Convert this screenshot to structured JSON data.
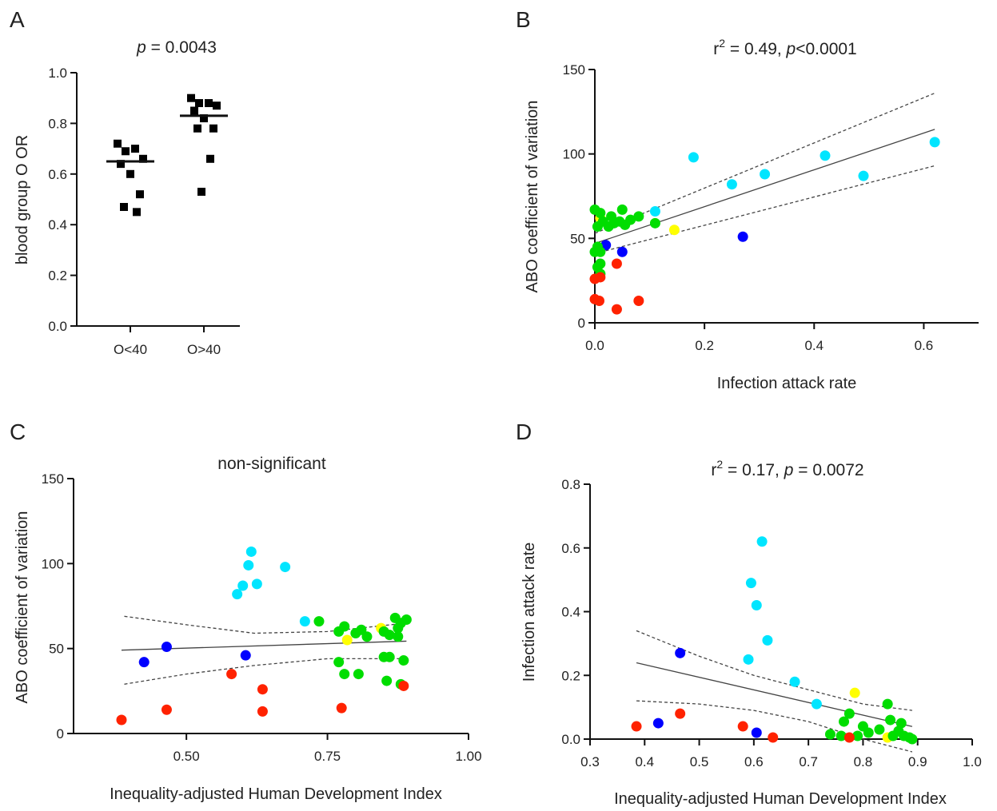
{
  "chart_data": [
    {
      "id": "A",
      "panel": "A",
      "type": "scatter",
      "title": "p = 0.0043",
      "title_parts": {
        "p": "p",
        "rest": " = 0.0043"
      },
      "xlabel": "",
      "ylabel": "blood group O OR",
      "categories": [
        "O<40",
        "O>40"
      ],
      "ylim": [
        0,
        1.0
      ],
      "yticks": [
        "0.0",
        "0.2",
        "0.4",
        "0.6",
        "0.8",
        "1.0"
      ],
      "series": [
        {
          "name": "O<40",
          "values": [
            0.72,
            0.69,
            0.7,
            0.66,
            0.64,
            0.6,
            0.52,
            0.47,
            0.45
          ],
          "median": 0.65
        },
        {
          "name": "O>40",
          "values": [
            0.9,
            0.88,
            0.88,
            0.87,
            0.85,
            0.82,
            0.78,
            0.78,
            0.66,
            0.53
          ],
          "median": 0.83
        }
      ],
      "marker": "square",
      "color": "#000000"
    },
    {
      "id": "B",
      "panel": "B",
      "type": "scatter",
      "title_parts": {
        "r": "r",
        "sup": "2",
        "mid": " = 0.49, ",
        "p": "p",
        "rest": "<0.0001"
      },
      "xlabel": "Infection attack rate",
      "ylabel": "ABO coefficient of variation",
      "xlim": [
        0,
        0.7
      ],
      "ylim": [
        0,
        150
      ],
      "xticks": [
        "0.0",
        "0.2",
        "0.4",
        "0.6"
      ],
      "yticks": [
        "0",
        "50",
        "100",
        "150"
      ],
      "fit": {
        "slope": 109,
        "intercept": 47
      },
      "ci_upper": [
        [
          0,
          53
        ],
        [
          0.62,
          136
        ]
      ],
      "ci_lower": [
        [
          0,
          41
        ],
        [
          0.62,
          93
        ]
      ],
      "points": [
        {
          "x": 0.62,
          "y": 107,
          "color": "#00e5ff"
        },
        {
          "x": 0.49,
          "y": 87,
          "color": "#00e5ff"
        },
        {
          "x": 0.42,
          "y": 99,
          "color": "#00e5ff"
        },
        {
          "x": 0.31,
          "y": 88,
          "color": "#00e5ff"
        },
        {
          "x": 0.25,
          "y": 82,
          "color": "#00e5ff"
        },
        {
          "x": 0.18,
          "y": 98,
          "color": "#00e5ff"
        },
        {
          "x": 0.11,
          "y": 66,
          "color": "#00e5ff"
        },
        {
          "x": 0.145,
          "y": 55,
          "color": "#ffff00"
        },
        {
          "x": 0.01,
          "y": 62,
          "color": "#ffff00"
        },
        {
          "x": 0.27,
          "y": 51,
          "color": "#0000ff"
        },
        {
          "x": 0.05,
          "y": 42,
          "color": "#0000ff"
        },
        {
          "x": 0.02,
          "y": 46,
          "color": "#0000ff"
        },
        {
          "x": 0.0,
          "y": 67,
          "color": "#00dd00"
        },
        {
          "x": 0.01,
          "y": 65,
          "color": "#00dd00"
        },
        {
          "x": 0.015,
          "y": 60,
          "color": "#00dd00"
        },
        {
          "x": 0.005,
          "y": 57,
          "color": "#00dd00"
        },
        {
          "x": 0.025,
          "y": 57,
          "color": "#00dd00"
        },
        {
          "x": 0.03,
          "y": 63,
          "color": "#00dd00"
        },
        {
          "x": 0.035,
          "y": 59,
          "color": "#00dd00"
        },
        {
          "x": 0.045,
          "y": 60,
          "color": "#00dd00"
        },
        {
          "x": 0.05,
          "y": 67,
          "color": "#00dd00"
        },
        {
          "x": 0.055,
          "y": 58,
          "color": "#00dd00"
        },
        {
          "x": 0.065,
          "y": 61,
          "color": "#00dd00"
        },
        {
          "x": 0.08,
          "y": 63,
          "color": "#00dd00"
        },
        {
          "x": 0.11,
          "y": 59,
          "color": "#00dd00"
        },
        {
          "x": 0.005,
          "y": 45,
          "color": "#00dd00"
        },
        {
          "x": 0.01,
          "y": 42,
          "color": "#00dd00"
        },
        {
          "x": 0.0,
          "y": 42,
          "color": "#00dd00"
        },
        {
          "x": 0.01,
          "y": 35,
          "color": "#00dd00"
        },
        {
          "x": 0.005,
          "y": 33,
          "color": "#00dd00"
        },
        {
          "x": 0.01,
          "y": 29,
          "color": "#00dd00"
        },
        {
          "x": 0.04,
          "y": 35,
          "color": "#ff2200"
        },
        {
          "x": 0.0,
          "y": 26,
          "color": "#ff2200"
        },
        {
          "x": 0.01,
          "y": 27,
          "color": "#ff2200"
        },
        {
          "x": 0.0,
          "y": 14,
          "color": "#ff2200"
        },
        {
          "x": 0.008,
          "y": 13,
          "color": "#ff2200"
        },
        {
          "x": 0.04,
          "y": 8,
          "color": "#ff2200"
        },
        {
          "x": 0.08,
          "y": 13,
          "color": "#ff2200"
        }
      ]
    },
    {
      "id": "C",
      "panel": "C",
      "type": "scatter",
      "title": "non-significant",
      "xlabel": "Inequality-adjusted Human Development Index",
      "ylabel": "ABO coefficient of variation",
      "xlim": [
        0.3,
        1.0
      ],
      "ylim": [
        0,
        150
      ],
      "xticks": [
        "0.50",
        "0.75",
        "1.00"
      ],
      "xtick_values": [
        0.5,
        0.75,
        1.0
      ],
      "yticks": [
        "0",
        "50",
        "100",
        "150"
      ],
      "fit": {
        "slope": 10.5,
        "intercept": 45
      },
      "ci_upper": [
        [
          0.39,
          69
        ],
        [
          0.5,
          64
        ],
        [
          0.62,
          59
        ],
        [
          0.75,
          60
        ],
        [
          0.89,
          65
        ]
      ],
      "ci_lower": [
        [
          0.39,
          29
        ],
        [
          0.5,
          35
        ],
        [
          0.62,
          40
        ],
        [
          0.75,
          44
        ],
        [
          0.89,
          44
        ]
      ],
      "points": [
        {
          "x": 0.615,
          "y": 107,
          "color": "#00e5ff"
        },
        {
          "x": 0.61,
          "y": 99,
          "color": "#00e5ff"
        },
        {
          "x": 0.675,
          "y": 98,
          "color": "#00e5ff"
        },
        {
          "x": 0.6,
          "y": 87,
          "color": "#00e5ff"
        },
        {
          "x": 0.625,
          "y": 88,
          "color": "#00e5ff"
        },
        {
          "x": 0.59,
          "y": 82,
          "color": "#00e5ff"
        },
        {
          "x": 0.71,
          "y": 66,
          "color": "#00e5ff"
        },
        {
          "x": 0.785,
          "y": 55,
          "color": "#ffff00"
        },
        {
          "x": 0.845,
          "y": 62,
          "color": "#ffff00"
        },
        {
          "x": 0.465,
          "y": 51,
          "color": "#0000ff"
        },
        {
          "x": 0.425,
          "y": 42,
          "color": "#0000ff"
        },
        {
          "x": 0.605,
          "y": 46,
          "color": "#0000ff"
        },
        {
          "x": 0.735,
          "y": 66,
          "color": "#00dd00"
        },
        {
          "x": 0.77,
          "y": 60,
          "color": "#00dd00"
        },
        {
          "x": 0.78,
          "y": 63,
          "color": "#00dd00"
        },
        {
          "x": 0.8,
          "y": 59,
          "color": "#00dd00"
        },
        {
          "x": 0.81,
          "y": 61,
          "color": "#00dd00"
        },
        {
          "x": 0.82,
          "y": 57,
          "color": "#00dd00"
        },
        {
          "x": 0.85,
          "y": 60,
          "color": "#00dd00"
        },
        {
          "x": 0.86,
          "y": 58,
          "color": "#00dd00"
        },
        {
          "x": 0.87,
          "y": 68,
          "color": "#00dd00"
        },
        {
          "x": 0.875,
          "y": 62,
          "color": "#00dd00"
        },
        {
          "x": 0.88,
          "y": 65,
          "color": "#00dd00"
        },
        {
          "x": 0.89,
          "y": 67,
          "color": "#00dd00"
        },
        {
          "x": 0.875,
          "y": 57,
          "color": "#00dd00"
        },
        {
          "x": 0.77,
          "y": 42,
          "color": "#00dd00"
        },
        {
          "x": 0.78,
          "y": 35,
          "color": "#00dd00"
        },
        {
          "x": 0.805,
          "y": 35,
          "color": "#00dd00"
        },
        {
          "x": 0.85,
          "y": 45,
          "color": "#00dd00"
        },
        {
          "x": 0.86,
          "y": 45,
          "color": "#00dd00"
        },
        {
          "x": 0.855,
          "y": 31,
          "color": "#00dd00"
        },
        {
          "x": 0.88,
          "y": 29,
          "color": "#00dd00"
        },
        {
          "x": 0.885,
          "y": 43,
          "color": "#00dd00"
        },
        {
          "x": 0.385,
          "y": 8,
          "color": "#ff2200"
        },
        {
          "x": 0.465,
          "y": 14,
          "color": "#ff2200"
        },
        {
          "x": 0.58,
          "y": 35,
          "color": "#ff2200"
        },
        {
          "x": 0.635,
          "y": 26,
          "color": "#ff2200"
        },
        {
          "x": 0.635,
          "y": 13,
          "color": "#ff2200"
        },
        {
          "x": 0.775,
          "y": 15,
          "color": "#ff2200"
        },
        {
          "x": 0.885,
          "y": 28,
          "color": "#ff2200"
        }
      ]
    },
    {
      "id": "D",
      "panel": "D",
      "type": "scatter",
      "title_parts": {
        "r": "r",
        "sup": "2",
        "mid": " = 0.17, ",
        "p": "p",
        "rest": " = 0.0072"
      },
      "xlabel": "Inequality-adjusted Human Development Index",
      "ylabel": "Infection attack rate",
      "xlim": [
        0.3,
        1.0
      ],
      "ylim": [
        0,
        0.8
      ],
      "xticks": [
        "0.3",
        "0.4",
        "0.5",
        "0.6",
        "0.7",
        "0.8",
        "0.9",
        "1.0"
      ],
      "yticks": [
        "0.0",
        "0.2",
        "0.4",
        "0.6",
        "0.8"
      ],
      "fit": {
        "slope": -0.396,
        "intercept": 0.392
      },
      "ci_upper": [
        [
          0.385,
          0.34
        ],
        [
          0.5,
          0.26
        ],
        [
          0.6,
          0.2
        ],
        [
          0.7,
          0.155
        ],
        [
          0.8,
          0.11
        ],
        [
          0.89,
          0.09
        ]
      ],
      "ci_lower": [
        [
          0.385,
          0.12
        ],
        [
          0.5,
          0.11
        ],
        [
          0.6,
          0.09
        ],
        [
          0.7,
          0.055
        ],
        [
          0.8,
          0.0
        ],
        [
          0.89,
          -0.04
        ]
      ],
      "points": [
        {
          "x": 0.615,
          "y": 0.62,
          "color": "#00e5ff"
        },
        {
          "x": 0.595,
          "y": 0.49,
          "color": "#00e5ff"
        },
        {
          "x": 0.605,
          "y": 0.42,
          "color": "#00e5ff"
        },
        {
          "x": 0.625,
          "y": 0.31,
          "color": "#00e5ff"
        },
        {
          "x": 0.59,
          "y": 0.25,
          "color": "#00e5ff"
        },
        {
          "x": 0.675,
          "y": 0.18,
          "color": "#00e5ff"
        },
        {
          "x": 0.715,
          "y": 0.11,
          "color": "#00e5ff"
        },
        {
          "x": 0.785,
          "y": 0.145,
          "color": "#ffff00"
        },
        {
          "x": 0.845,
          "y": 0.005,
          "color": "#ffff00"
        },
        {
          "x": 0.465,
          "y": 0.27,
          "color": "#0000ff"
        },
        {
          "x": 0.425,
          "y": 0.05,
          "color": "#0000ff"
        },
        {
          "x": 0.605,
          "y": 0.02,
          "color": "#0000ff"
        },
        {
          "x": 0.845,
          "y": 0.11,
          "color": "#00dd00"
        },
        {
          "x": 0.775,
          "y": 0.08,
          "color": "#00dd00"
        },
        {
          "x": 0.765,
          "y": 0.055,
          "color": "#00dd00"
        },
        {
          "x": 0.8,
          "y": 0.04,
          "color": "#00dd00"
        },
        {
          "x": 0.85,
          "y": 0.06,
          "color": "#00dd00"
        },
        {
          "x": 0.87,
          "y": 0.05,
          "color": "#00dd00"
        },
        {
          "x": 0.74,
          "y": 0.015,
          "color": "#00dd00"
        },
        {
          "x": 0.76,
          "y": 0.01,
          "color": "#00dd00"
        },
        {
          "x": 0.79,
          "y": 0.01,
          "color": "#00dd00"
        },
        {
          "x": 0.81,
          "y": 0.02,
          "color": "#00dd00"
        },
        {
          "x": 0.83,
          "y": 0.03,
          "color": "#00dd00"
        },
        {
          "x": 0.855,
          "y": 0.01,
          "color": "#00dd00"
        },
        {
          "x": 0.865,
          "y": 0.025,
          "color": "#00dd00"
        },
        {
          "x": 0.875,
          "y": 0.01,
          "color": "#00dd00"
        },
        {
          "x": 0.885,
          "y": 0.005,
          "color": "#00dd00"
        },
        {
          "x": 0.89,
          "y": 0.0,
          "color": "#00dd00"
        },
        {
          "x": 0.385,
          "y": 0.04,
          "color": "#ff2200"
        },
        {
          "x": 0.465,
          "y": 0.08,
          "color": "#ff2200"
        },
        {
          "x": 0.58,
          "y": 0.04,
          "color": "#ff2200"
        },
        {
          "x": 0.635,
          "y": 0.005,
          "color": "#ff2200"
        },
        {
          "x": 0.775,
          "y": 0.005,
          "color": "#ff2200"
        }
      ]
    }
  ]
}
